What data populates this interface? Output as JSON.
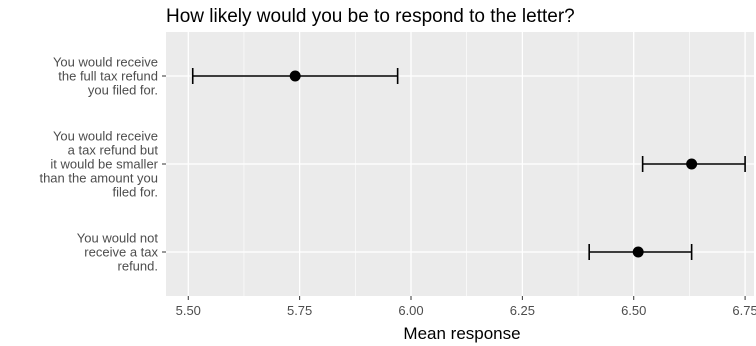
{
  "chart_data": {
    "type": "scatter",
    "title": "How likely would you be to respond to the letter?",
    "xlabel": "Mean response",
    "ylabel": "",
    "xlim": [
      5.45,
      6.77
    ],
    "xticks": [
      "5.50",
      "5.75",
      "6.00",
      "6.25",
      "6.50",
      "6.75"
    ],
    "xtick_values": [
      5.5,
      5.75,
      6.0,
      6.25,
      6.5,
      6.75
    ],
    "grid": true,
    "background": "#ebebeb",
    "grid_color": "#ffffff",
    "point_color": "#000000",
    "categories": [
      {
        "label_lines": [
          "You would receive",
          "the full tax refund",
          "you filed for."
        ],
        "mean": 5.74,
        "ci_low": 5.51,
        "ci_high": 5.97
      },
      {
        "label_lines": [
          "You would receive",
          "a tax refund but",
          "it would be smaller",
          "than the amount you",
          "filed for."
        ],
        "mean": 6.63,
        "ci_low": 6.52,
        "ci_high": 6.75
      },
      {
        "label_lines": [
          "You would not",
          "receive a tax",
          "refund."
        ],
        "mean": 6.51,
        "ci_low": 6.4,
        "ci_high": 6.63
      }
    ]
  }
}
